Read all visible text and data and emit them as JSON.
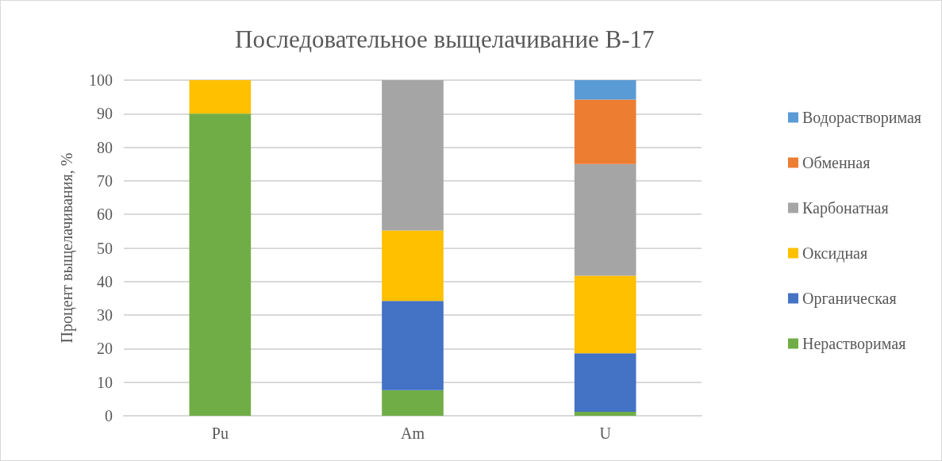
{
  "chart_data": {
    "type": "bar",
    "title": "Последовательное выщелачивание В-17",
    "ylabel": "Процент выщелачивания, %",
    "categories": [
      "Pu",
      "Am",
      "U"
    ],
    "stacked": true,
    "series": [
      {
        "name": "Нерастворимая",
        "color": "#70ad47",
        "values": [
          90,
          7.6,
          1.2
        ]
      },
      {
        "name": "Органическая",
        "color": "#4472c4",
        "values": [
          null,
          26.6,
          17.4
        ]
      },
      {
        "name": "Оксидная",
        "color": "#ffc000",
        "values": [
          10,
          21,
          23.1
        ]
      },
      {
        "name": "Карбонатная",
        "color": "#a5a5a5",
        "values": [
          0,
          44.8,
          33.3
        ]
      },
      {
        "name": "Обменная",
        "color": "#ed7d31",
        "values": [
          0,
          0,
          19.2
        ]
      },
      {
        "name": "Водорастворимая",
        "color": "#5b9bd5",
        "values": [
          0,
          0,
          5.8
        ]
      }
    ],
    "ylim": [
      0,
      100
    ],
    "yticks": [
      0,
      10,
      20,
      30,
      40,
      50,
      60,
      70,
      80,
      90,
      100
    ],
    "grid": "y",
    "legend": "right"
  }
}
